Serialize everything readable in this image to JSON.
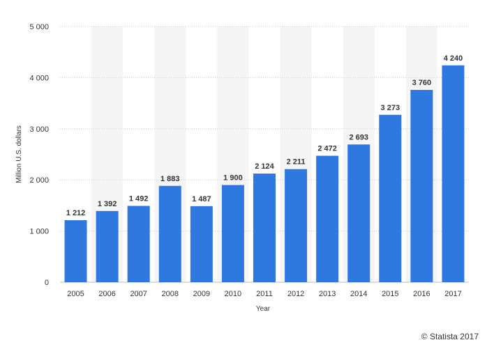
{
  "chart_data": {
    "type": "bar",
    "categories": [
      "2005",
      "2006",
      "2007",
      "2008",
      "2009",
      "2010",
      "2011",
      "2012",
      "2013",
      "2014",
      "2015",
      "2016",
      "2017"
    ],
    "values": [
      1212,
      1392,
      1492,
      1883,
      1487,
      1900,
      2124,
      2211,
      2472,
      2693,
      3273,
      3760,
      4240
    ],
    "value_labels": [
      "1 212",
      "1 392",
      "1 492",
      "1 883",
      "1 487",
      "1 900",
      "2 124",
      "2 211",
      "2 472",
      "2 693",
      "3 273",
      "3 760",
      "4 240"
    ],
    "xlabel": "Year",
    "ylabel": "Million U.S. dollars",
    "ylim": [
      0,
      5000
    ],
    "yticks": [
      0,
      1000,
      2000,
      3000,
      4000,
      5000
    ],
    "ytick_labels": [
      "0",
      "1 000",
      "2 000",
      "3 000",
      "4 000",
      "5 000"
    ],
    "grid": true,
    "colors": {
      "bar": "#2f78e0",
      "band": "#f5f5f5",
      "grid": "#cccccc"
    }
  },
  "credit": "© Statista 2017"
}
